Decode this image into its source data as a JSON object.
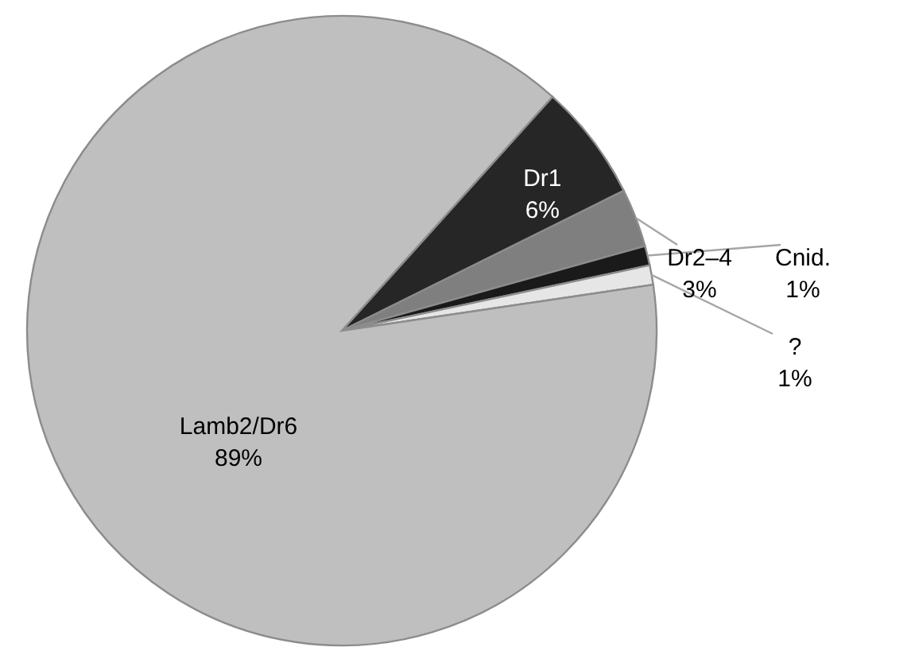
{
  "chart_data": {
    "type": "pie",
    "categories": [
      "Dr1",
      "Dr2–4",
      "Cnid.",
      "?",
      "Lamb2/Dr6"
    ],
    "values": [
      6,
      3,
      1,
      1,
      89
    ],
    "colors": [
      "#262626",
      "#7f7f7f",
      "#1a1a1a",
      "#e6e6e6",
      "#bfbfbf"
    ],
    "value_labels": [
      "6%",
      "3%",
      "1%",
      "1%",
      "89%"
    ]
  }
}
